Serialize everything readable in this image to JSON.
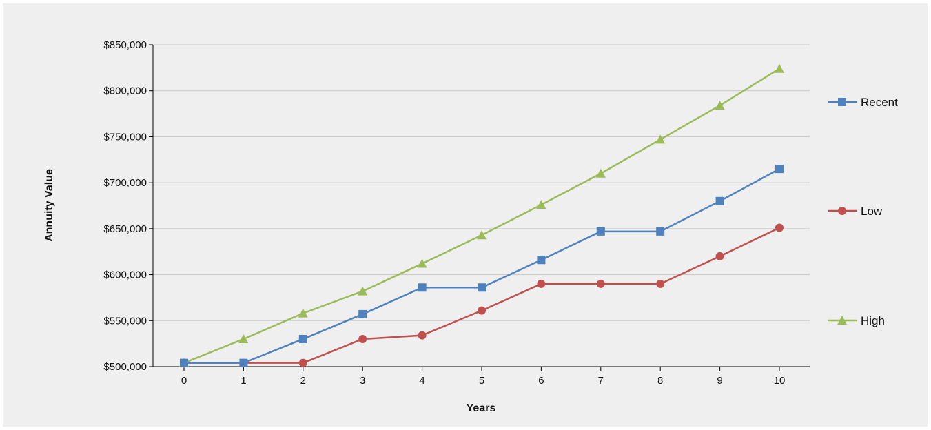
{
  "chart_data": {
    "type": "line",
    "title": "",
    "xlabel": "Years",
    "ylabel": "Annuity Value",
    "x": [
      0,
      1,
      2,
      3,
      4,
      5,
      6,
      7,
      8,
      9,
      10
    ],
    "xlim": [
      0,
      10
    ],
    "ylim": [
      500000,
      850000
    ],
    "yticks": [
      500000,
      550000,
      600000,
      650000,
      700000,
      750000,
      800000,
      850000
    ],
    "ytick_labels": [
      "$500,000",
      "$550,000",
      "$600,000",
      "$650,000",
      "$700,000",
      "$750,000",
      "$800,000",
      "$850,000"
    ],
    "xtick_labels": [
      "0",
      "1",
      "2",
      "3",
      "4",
      "5",
      "6",
      "7",
      "8",
      "9",
      "10"
    ],
    "grid": true,
    "legend_position": "right",
    "series": [
      {
        "name": "Recent",
        "color": "#4f81bd",
        "marker": "square",
        "values": [
          504000,
          504000,
          530000,
          557000,
          586000,
          586000,
          616000,
          647000,
          647000,
          680000,
          715000
        ]
      },
      {
        "name": "Low",
        "color": "#c0504d",
        "marker": "circle",
        "values": [
          504000,
          504000,
          504000,
          530000,
          534000,
          561000,
          590000,
          590000,
          590000,
          620000,
          651000
        ]
      },
      {
        "name": "High",
        "color": "#9bbb59",
        "marker": "triangle",
        "values": [
          504000,
          530000,
          558000,
          582000,
          612000,
          643000,
          676000,
          710000,
          747000,
          784000,
          824000
        ]
      }
    ]
  }
}
